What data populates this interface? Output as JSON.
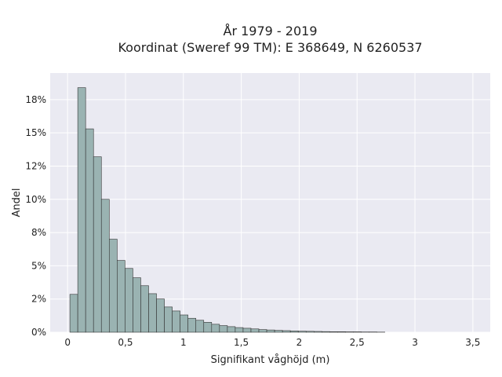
{
  "chart_data": {
    "type": "bar",
    "title_lines": [
      "År 1979 - 2019",
      "Koordinat (Sweref 99 TM): E 368649, N 6260537"
    ],
    "xlabel": "Signifikant våghöjd (m)",
    "ylabel": "Andel",
    "xlim": [
      -0.15,
      3.65
    ],
    "ylim": [
      0,
      0.195
    ],
    "x_ticks": [
      {
        "value": 0,
        "label": "0"
      },
      {
        "value": 0.5,
        "label": "0,5"
      },
      {
        "value": 1,
        "label": "1"
      },
      {
        "value": 1.5,
        "label": "1,5"
      },
      {
        "value": 2,
        "label": "2"
      },
      {
        "value": 2.5,
        "label": "2,5"
      },
      {
        "value": 3,
        "label": "3"
      },
      {
        "value": 3.5,
        "label": "3,5"
      }
    ],
    "y_ticks": [
      {
        "value": 0,
        "label": "0%"
      },
      {
        "value": 0.025,
        "label": "2%"
      },
      {
        "value": 0.05,
        "label": "5%"
      },
      {
        "value": 0.075,
        "label": "8%"
      },
      {
        "value": 0.1,
        "label": "10%"
      },
      {
        "value": 0.125,
        "label": "12%"
      },
      {
        "value": 0.15,
        "label": "15%"
      },
      {
        "value": 0.175,
        "label": "18%"
      }
    ],
    "bin_width": 0.068,
    "bin_start": 0.02,
    "values": [
      0.0285,
      0.184,
      0.153,
      0.132,
      0.1,
      0.07,
      0.054,
      0.048,
      0.041,
      0.035,
      0.029,
      0.025,
      0.019,
      0.016,
      0.013,
      0.0105,
      0.009,
      0.0075,
      0.006,
      0.005,
      0.0042,
      0.0035,
      0.003,
      0.0025,
      0.002,
      0.0017,
      0.0014,
      0.0012,
      0.001,
      0.0008,
      0.0007,
      0.0006,
      0.0005,
      0.0004,
      0.0004,
      0.0003,
      0.0003,
      0.0002,
      0.0002,
      0.0001
    ],
    "grid": true,
    "colors": {
      "bar_fill": "#9ab3b2",
      "bar_edge": "#333333",
      "plot_bg": "#eaeaf2",
      "grid": "#ffffff"
    }
  }
}
